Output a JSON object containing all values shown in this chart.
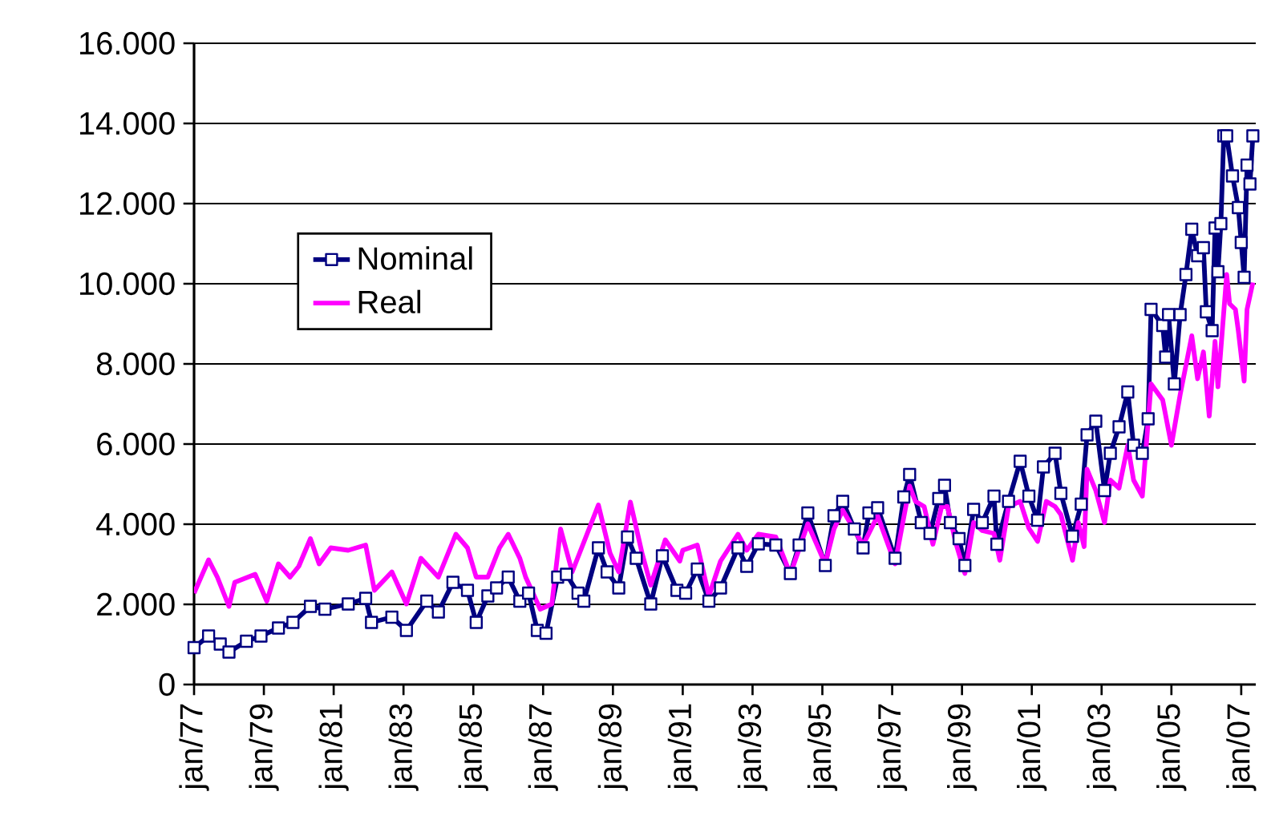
{
  "chart_data": {
    "type": "line",
    "xlim": [
      "1977-01",
      "2007-06"
    ],
    "xticks": [
      {
        "value": "1977-01",
        "label": "jan/77"
      },
      {
        "value": "1979-01",
        "label": "jan/79"
      },
      {
        "value": "1981-01",
        "label": "jan/81"
      },
      {
        "value": "1983-01",
        "label": "jan/83"
      },
      {
        "value": "1985-01",
        "label": "jan/85"
      },
      {
        "value": "1987-01",
        "label": "jan/87"
      },
      {
        "value": "1989-01",
        "label": "jan/89"
      },
      {
        "value": "1991-01",
        "label": "jan/91"
      },
      {
        "value": "1993-01",
        "label": "jan/93"
      },
      {
        "value": "1995-01",
        "label": "jan/95"
      },
      {
        "value": "1997-01",
        "label": "jan/97"
      },
      {
        "value": "1999-01",
        "label": "jan/99"
      },
      {
        "value": "2001-01",
        "label": "jan/01"
      },
      {
        "value": "2003-01",
        "label": "jan/03"
      },
      {
        "value": "2005-01",
        "label": "jan/05"
      },
      {
        "value": "2007-01",
        "label": "jan/07"
      }
    ],
    "ylim": [
      0,
      16000
    ],
    "yticks": [
      0,
      {
        "value": 2000,
        "label": "2.000"
      },
      {
        "value": 4000,
        "label": "4.000"
      },
      {
        "value": 6000,
        "label": "6.000"
      },
      {
        "value": 8000,
        "label": "8.000"
      },
      {
        "value": 10000,
        "label": "10.000"
      },
      {
        "value": 12000,
        "label": "12.000"
      },
      {
        "value": 14000,
        "label": "14.000"
      },
      {
        "value": 16000,
        "label": "16.000"
      }
    ],
    "grid": "y",
    "legend": "top left",
    "series": [
      {
        "name": "Nominal",
        "color": "#000080",
        "marker": "square",
        "x": [
          "1977-01",
          "1977-06",
          "1977-10",
          "1978-01",
          "1978-07",
          "1978-12",
          "1979-06",
          "1979-11",
          "1980-05",
          "1980-10",
          "1981-06",
          "1981-12",
          "1982-02",
          "1982-09",
          "1983-02",
          "1983-09",
          "1984-01",
          "1984-06",
          "1984-11",
          "1985-02",
          "1985-06",
          "1985-09",
          "1986-01",
          "1986-05",
          "1986-08",
          "1986-11",
          "1987-02",
          "1987-06",
          "1987-09",
          "1988-01",
          "1988-03",
          "1988-08",
          "1988-11",
          "1989-03",
          "1989-06",
          "1989-09",
          "1990-02",
          "1990-06",
          "1990-11",
          "1991-02",
          "1991-06",
          "1991-10",
          "1992-02",
          "1992-08",
          "1992-11",
          "1993-03",
          "1993-09",
          "1994-02",
          "1994-05",
          "1994-08",
          "1995-02",
          "1995-05",
          "1995-08",
          "1995-12",
          "1996-03",
          "1996-05",
          "1996-08",
          "1997-02",
          "1997-05",
          "1997-07",
          "1997-11",
          "1998-02",
          "1998-05",
          "1998-07",
          "1998-09",
          "1998-12",
          "1999-02",
          "1999-05",
          "1999-08",
          "1999-12",
          "2000-01",
          "2000-05",
          "2000-09",
          "2000-12",
          "2001-03",
          "2001-05",
          "2001-09",
          "2001-11",
          "2002-03",
          "2002-06",
          "2002-08",
          "2002-11",
          "2003-02",
          "2003-04",
          "2003-07",
          "2003-10",
          "2003-12",
          "2004-03",
          "2004-05",
          "2004-06",
          "2004-10",
          "2004-11",
          "2004-12",
          "2005-02",
          "2005-04",
          "2005-06",
          "2005-08",
          "2005-10",
          "2005-12",
          "2006-01",
          "2006-03",
          "2006-04",
          "2006-05",
          "2006-06",
          "2006-07",
          "2006-08",
          "2006-10",
          "2006-12",
          "2007-01",
          "2007-02",
          "2007-03",
          "2007-04",
          "2007-05"
        ],
        "values": [
          920,
          1210,
          1010,
          810,
          1080,
          1210,
          1410,
          1550,
          1950,
          1880,
          2010,
          2150,
          1550,
          1680,
          1350,
          2080,
          1810,
          2550,
          2350,
          1550,
          2210,
          2410,
          2680,
          2080,
          2280,
          1350,
          1280,
          2680,
          2750,
          2280,
          2080,
          3410,
          2810,
          2410,
          3680,
          3150,
          2010,
          3210,
          2350,
          2280,
          2880,
          2080,
          2410,
          3410,
          2950,
          3510,
          3480,
          2770,
          3480,
          4280,
          2970,
          4210,
          4570,
          3880,
          3410,
          4280,
          4410,
          3150,
          4680,
          5240,
          4040,
          3770,
          4640,
          4970,
          4040,
          3640,
          2970,
          4370,
          4040,
          4700,
          3500,
          4570,
          5570,
          4700,
          4100,
          5430,
          5770,
          4770,
          3700,
          4500,
          6230,
          6570,
          4840,
          5770,
          6430,
          7300,
          5970,
          5770,
          6630,
          9360,
          8960,
          8170,
          9230,
          7500,
          9230,
          10230,
          11360,
          10700,
          10900,
          9300,
          8830,
          11390,
          10300,
          11500,
          13690,
          13690,
          12690,
          11900,
          11030,
          10160,
          12960,
          12490,
          13690
        ]
      },
      {
        "name": "Real",
        "color": "#ff00ff",
        "marker": "none",
        "x": [
          "1977-01",
          "1977-06",
          "1977-09",
          "1978-01",
          "1978-03",
          "1978-10",
          "1979-02",
          "1979-06",
          "1979-10",
          "1980-01",
          "1980-05",
          "1980-08",
          "1980-12",
          "1981-06",
          "1981-12",
          "1982-03",
          "1982-09",
          "1983-02",
          "1983-07",
          "1984-01",
          "1984-07",
          "1984-11",
          "1985-02",
          "1985-06",
          "1985-10",
          "1986-01",
          "1986-05",
          "1986-07",
          "1986-12",
          "1987-04",
          "1987-07",
          "1987-11",
          "1988-03",
          "1988-08",
          "1988-12",
          "1989-03",
          "1989-07",
          "1989-11",
          "1990-02",
          "1990-07",
          "1990-12",
          "1991-01",
          "1991-06",
          "1991-10",
          "1992-02",
          "1992-08",
          "1992-11",
          "1993-03",
          "1993-09",
          "1994-02",
          "1994-08",
          "1995-02",
          "1995-05",
          "1995-08",
          "1996-03",
          "1996-08",
          "1997-02",
          "1997-07",
          "1997-09",
          "1997-12",
          "1998-03",
          "1998-06",
          "1998-08",
          "1998-11",
          "1999-02",
          "1999-05",
          "1999-08",
          "1999-12",
          "2000-02",
          "2000-05",
          "2000-09",
          "2000-12",
          "2001-03",
          "2001-06",
          "2001-09",
          "2001-11",
          "2002-03",
          "2002-05",
          "2002-07",
          "2002-08",
          "2002-11",
          "2003-02",
          "2003-04",
          "2003-07",
          "2003-10",
          "2003-12",
          "2004-03",
          "2004-05",
          "2004-06",
          "2004-10",
          "2005-01",
          "2005-04",
          "2005-08",
          "2005-10",
          "2005-12",
          "2006-02",
          "2006-04",
          "2006-05",
          "2006-08",
          "2006-09",
          "2006-11",
          "2006-12",
          "2007-02",
          "2007-03",
          "2007-05"
        ],
        "values": [
          2280,
          3110,
          2680,
          1950,
          2550,
          2750,
          2080,
          3010,
          2680,
          2950,
          3640,
          3010,
          3410,
          3350,
          3480,
          2350,
          2810,
          2010,
          3150,
          2680,
          3750,
          3410,
          2680,
          2680,
          3410,
          3750,
          3150,
          2680,
          1880,
          2010,
          3880,
          2810,
          3550,
          4480,
          3280,
          2810,
          4550,
          3280,
          2480,
          3610,
          3080,
          3350,
          3480,
          2210,
          3080,
          3750,
          3350,
          3750,
          3680,
          2750,
          4010,
          3010,
          3880,
          4350,
          3480,
          4210,
          3010,
          4950,
          4570,
          4440,
          3500,
          4440,
          4440,
          3500,
          2770,
          4040,
          3840,
          3770,
          3100,
          4440,
          4570,
          3900,
          3570,
          4570,
          4440,
          4240,
          3100,
          4040,
          3440,
          5370,
          4840,
          4040,
          5100,
          4900,
          5970,
          5100,
          4700,
          6570,
          7500,
          7100,
          5970,
          7230,
          8700,
          7630,
          8300,
          6700,
          8560,
          7430,
          10230,
          9500,
          9360,
          8830,
          7570,
          9360,
          10030
        ]
      }
    ]
  }
}
